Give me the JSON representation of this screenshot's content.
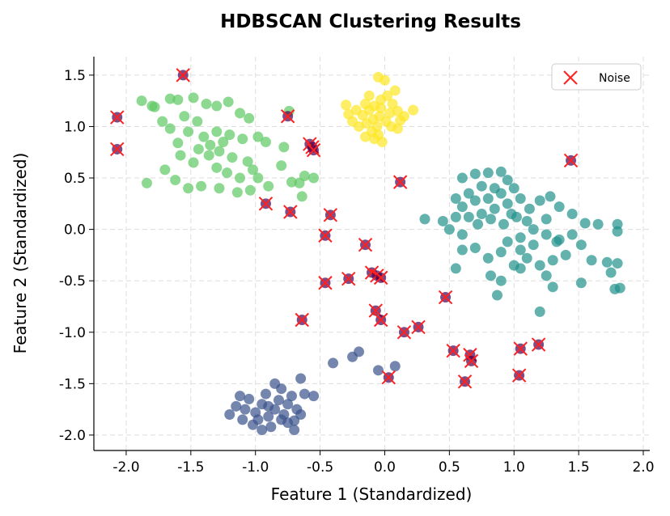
{
  "chart_data": {
    "type": "scatter",
    "title": "HDBSCAN Clustering Results",
    "xlabel": "Feature 1 (Standardized)",
    "ylabel": "Feature 2 (Standardized)",
    "xlim": [
      -2.25,
      2.05
    ],
    "ylim": [
      -2.15,
      1.68
    ],
    "xticks": [
      -2.0,
      -1.5,
      -1.0,
      -0.5,
      0.0,
      0.5,
      1.0,
      1.5,
      2.0
    ],
    "yticks": [
      -2.0,
      -1.5,
      -1.0,
      -0.5,
      0.0,
      0.5,
      1.0,
      1.5
    ],
    "grid": true,
    "legend": {
      "position": "top-right",
      "entries": [
        "Noise"
      ]
    },
    "colors": {
      "noise_fill": "#440154",
      "noise_marker": "#ff0000",
      "cluster_0": "#3b528b",
      "cluster_1": "#21918c",
      "cluster_2": "#5ec962",
      "cluster_3": "#fde725"
    },
    "clusters": [
      {
        "color": "#5ec962",
        "points": [
          [
            -1.88,
            1.25
          ],
          [
            -1.8,
            1.2
          ],
          [
            -1.78,
            1.19
          ],
          [
            -1.66,
            1.27
          ],
          [
            -1.6,
            1.26
          ],
          [
            -1.48,
            1.28
          ],
          [
            -1.38,
            1.22
          ],
          [
            -1.3,
            1.2
          ],
          [
            -1.21,
            1.24
          ],
          [
            -1.12,
            1.13
          ],
          [
            -1.05,
            1.08
          ],
          [
            -1.55,
            1.1
          ],
          [
            -1.45,
            1.05
          ],
          [
            -1.72,
            1.05
          ],
          [
            -1.66,
            0.98
          ],
          [
            -1.52,
            0.95
          ],
          [
            -1.4,
            0.9
          ],
          [
            -1.3,
            0.95
          ],
          [
            -1.2,
            0.92
          ],
          [
            -1.1,
            0.88
          ],
          [
            -0.98,
            0.9
          ],
          [
            -0.92,
            0.85
          ],
          [
            -1.6,
            0.84
          ],
          [
            -1.44,
            0.78
          ],
          [
            -1.36,
            0.72
          ],
          [
            -1.28,
            0.76
          ],
          [
            -1.18,
            0.7
          ],
          [
            -1.06,
            0.66
          ],
          [
            -1.58,
            0.72
          ],
          [
            -1.48,
            0.65
          ],
          [
            -1.3,
            0.6
          ],
          [
            -1.22,
            0.55
          ],
          [
            -1.12,
            0.5
          ],
          [
            -1.02,
            0.58
          ],
          [
            -1.7,
            0.58
          ],
          [
            -1.62,
            0.48
          ],
          [
            -1.52,
            0.4
          ],
          [
            -1.42,
            0.42
          ],
          [
            -1.28,
            0.4
          ],
          [
            -1.14,
            0.36
          ],
          [
            -1.04,
            0.38
          ],
          [
            -1.84,
            0.45
          ],
          [
            -0.8,
            0.62
          ],
          [
            -0.78,
            0.8
          ],
          [
            -0.74,
            1.15
          ],
          [
            -0.62,
            0.52
          ],
          [
            -0.66,
            0.45
          ],
          [
            -0.72,
            0.46
          ],
          [
            -0.64,
            0.32
          ],
          [
            -0.55,
            0.5
          ],
          [
            -1.35,
            0.82
          ],
          [
            -1.25,
            0.85
          ],
          [
            -0.98,
            0.5
          ],
          [
            -0.9,
            0.42
          ]
        ]
      },
      {
        "color": "#fde725",
        "points": [
          [
            -0.05,
            1.48
          ],
          [
            0.0,
            1.45
          ],
          [
            -0.3,
            1.21
          ],
          [
            -0.22,
            1.16
          ],
          [
            -0.17,
            1.11
          ],
          [
            -0.12,
            1.16
          ],
          [
            -0.08,
            1.2
          ],
          [
            -0.03,
            1.26
          ],
          [
            0.02,
            1.3
          ],
          [
            0.06,
            1.22
          ],
          [
            0.1,
            1.15
          ],
          [
            0.15,
            1.1
          ],
          [
            0.22,
            1.16
          ],
          [
            -0.25,
            1.05
          ],
          [
            -0.2,
            1.0
          ],
          [
            -0.14,
            1.03
          ],
          [
            -0.09,
            1.07
          ],
          [
            -0.04,
            1.1
          ],
          [
            0.01,
            1.05
          ],
          [
            0.05,
            1.0
          ],
          [
            0.1,
            0.98
          ],
          [
            -0.1,
            0.95
          ],
          [
            -0.05,
            0.92
          ],
          [
            -0.02,
            0.85
          ],
          [
            -0.08,
            0.88
          ],
          [
            -0.15,
            0.9
          ],
          [
            -0.03,
            1.18
          ],
          [
            -0.12,
            1.3
          ],
          [
            0.08,
            1.35
          ],
          [
            -0.28,
            1.12
          ],
          [
            0.12,
            1.06
          ],
          [
            -0.06,
            1.0
          ],
          [
            -0.15,
            1.22
          ],
          [
            0.04,
            1.13
          ]
        ]
      },
      {
        "color": "#21918c",
        "points": [
          [
            0.6,
            0.5
          ],
          [
            0.7,
            0.54
          ],
          [
            0.8,
            0.55
          ],
          [
            0.9,
            0.56
          ],
          [
            0.95,
            0.48
          ],
          [
            0.75,
            0.42
          ],
          [
            0.85,
            0.4
          ],
          [
            0.65,
            0.35
          ],
          [
            0.55,
            0.3
          ],
          [
            0.6,
            0.22
          ],
          [
            0.7,
            0.28
          ],
          [
            0.8,
            0.3
          ],
          [
            0.9,
            0.35
          ],
          [
            1.0,
            0.4
          ],
          [
            1.05,
            0.3
          ],
          [
            0.95,
            0.25
          ],
          [
            0.85,
            0.2
          ],
          [
            0.75,
            0.15
          ],
          [
            0.65,
            0.12
          ],
          [
            0.55,
            0.12
          ],
          [
            0.45,
            0.08
          ],
          [
            0.31,
            0.1
          ],
          [
            0.5,
            0.0
          ],
          [
            0.6,
            -0.05
          ],
          [
            0.72,
            0.05
          ],
          [
            0.82,
            0.1
          ],
          [
            0.92,
            0.05
          ],
          [
            1.02,
            0.12
          ],
          [
            1.12,
            0.2
          ],
          [
            1.2,
            0.28
          ],
          [
            1.28,
            0.32
          ],
          [
            1.35,
            0.22
          ],
          [
            1.45,
            0.15
          ],
          [
            1.55,
            0.06
          ],
          [
            1.65,
            0.05
          ],
          [
            1.8,
            0.05
          ],
          [
            1.8,
            -0.02
          ],
          [
            1.25,
            0.1
          ],
          [
            1.15,
            0.0
          ],
          [
            1.05,
            -0.08
          ],
          [
            0.95,
            -0.12
          ],
          [
            1.05,
            -0.2
          ],
          [
            1.15,
            -0.15
          ],
          [
            1.25,
            -0.05
          ],
          [
            1.35,
            -0.1
          ],
          [
            1.45,
            -0.05
          ],
          [
            1.52,
            -0.15
          ],
          [
            1.4,
            -0.25
          ],
          [
            1.3,
            -0.3
          ],
          [
            1.2,
            -0.35
          ],
          [
            1.1,
            -0.28
          ],
          [
            1.0,
            -0.35
          ],
          [
            0.9,
            -0.22
          ],
          [
            0.8,
            -0.28
          ],
          [
            0.7,
            -0.18
          ],
          [
            0.82,
            -0.45
          ],
          [
            0.9,
            -0.5
          ],
          [
            1.05,
            -0.38
          ],
          [
            1.25,
            -0.45
          ],
          [
            1.3,
            -0.56
          ],
          [
            1.52,
            -0.52
          ],
          [
            1.6,
            -0.3
          ],
          [
            1.72,
            -0.32
          ],
          [
            1.75,
            -0.42
          ],
          [
            1.8,
            -0.33
          ],
          [
            1.82,
            -0.57
          ],
          [
            1.78,
            -0.58
          ],
          [
            0.55,
            -0.38
          ],
          [
            0.6,
            -0.2
          ],
          [
            0.87,
            -0.64
          ],
          [
            1.2,
            -0.8
          ],
          [
            1.33,
            -0.12
          ],
          [
            0.98,
            0.15
          ],
          [
            1.1,
            0.08
          ]
        ]
      },
      {
        "color": "#3b528b",
        "points": [
          [
            -1.2,
            -1.8
          ],
          [
            -1.15,
            -1.72
          ],
          [
            -1.1,
            -1.85
          ],
          [
            -1.05,
            -1.65
          ],
          [
            -1.0,
            -1.78
          ],
          [
            -0.95,
            -1.7
          ],
          [
            -0.92,
            -1.6
          ],
          [
            -0.9,
            -1.82
          ],
          [
            -0.85,
            -1.75
          ],
          [
            -0.82,
            -1.66
          ],
          [
            -0.78,
            -1.8
          ],
          [
            -0.75,
            -1.7
          ],
          [
            -0.72,
            -1.62
          ],
          [
            -0.7,
            -1.86
          ],
          [
            -0.68,
            -1.75
          ],
          [
            -0.88,
            -1.92
          ],
          [
            -0.95,
            -1.95
          ],
          [
            -1.02,
            -1.9
          ],
          [
            -0.8,
            -1.55
          ],
          [
            -0.85,
            -1.5
          ],
          [
            -0.75,
            -1.88
          ],
          [
            -0.65,
            -1.8
          ],
          [
            -1.08,
            -1.75
          ],
          [
            -0.98,
            -1.85
          ],
          [
            -0.9,
            -1.72
          ],
          [
            -0.8,
            -1.85
          ],
          [
            -1.12,
            -1.62
          ],
          [
            -0.7,
            -1.95
          ],
          [
            -0.62,
            -1.6
          ],
          [
            -0.55,
            -1.62
          ],
          [
            -0.65,
            -1.45
          ],
          [
            -0.4,
            -1.3
          ],
          [
            -0.25,
            -1.24
          ],
          [
            -0.2,
            -1.19
          ],
          [
            -0.05,
            -1.37
          ],
          [
            0.08,
            -1.33
          ]
        ]
      }
    ],
    "noise": [
      [
        -2.07,
        1.09
      ],
      [
        -2.07,
        0.78
      ],
      [
        -1.56,
        1.5
      ],
      [
        -0.75,
        1.1
      ],
      [
        -0.58,
        0.83
      ],
      [
        -0.56,
        0.8
      ],
      [
        -0.55,
        0.77
      ],
      [
        -0.92,
        0.25
      ],
      [
        -0.73,
        0.17
      ],
      [
        -0.42,
        0.14
      ],
      [
        0.12,
        0.46
      ],
      [
        1.44,
        0.67
      ],
      [
        -0.46,
        -0.06
      ],
      [
        -0.15,
        -0.15
      ],
      [
        -0.46,
        -0.52
      ],
      [
        -0.28,
        -0.48
      ],
      [
        -0.1,
        -0.42
      ],
      [
        -0.06,
        -0.45
      ],
      [
        -0.03,
        -0.47
      ],
      [
        -0.64,
        -0.88
      ],
      [
        -0.07,
        -0.79
      ],
      [
        -0.03,
        -0.88
      ],
      [
        0.15,
        -1.0
      ],
      [
        0.26,
        -0.95
      ],
      [
        0.47,
        -0.66
      ],
      [
        0.53,
        -1.18
      ],
      [
        0.66,
        -1.22
      ],
      [
        0.67,
        -1.28
      ],
      [
        0.62,
        -1.48
      ],
      [
        1.05,
        -1.16
      ],
      [
        1.19,
        -1.12
      ],
      [
        1.04,
        -1.42
      ],
      [
        0.03,
        -1.44
      ]
    ]
  }
}
